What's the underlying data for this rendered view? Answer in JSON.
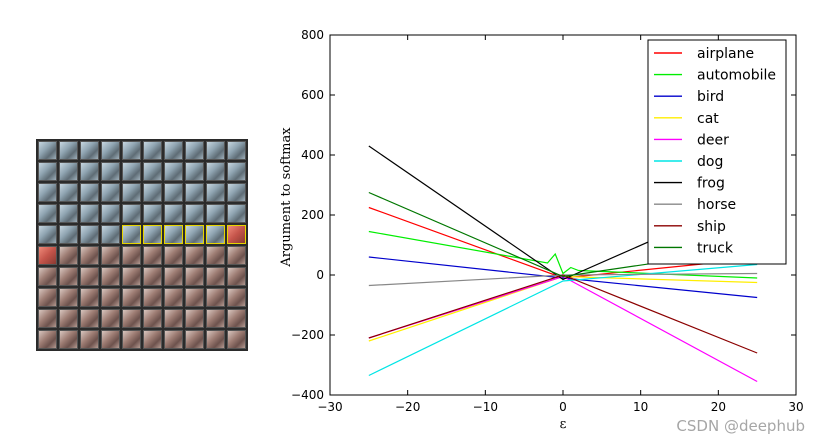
{
  "image_grid": {
    "rows": 10,
    "cols": 10,
    "tint_by_row": [
      "blue",
      "blue",
      "blue",
      "blue",
      "blue",
      "brown",
      "brown",
      "brown",
      "brown",
      "brown"
    ],
    "highlighted_cells": [
      [
        4,
        4
      ],
      [
        4,
        5
      ],
      [
        4,
        6
      ],
      [
        4,
        7
      ],
      [
        4,
        8
      ],
      [
        4,
        9
      ],
      [
        4,
        10
      ]
    ],
    "red_cells": [
      [
        5,
        0
      ],
      [
        4,
        9
      ]
    ]
  },
  "chart_data": {
    "type": "line",
    "xlabel": "ε",
    "ylabel": "Argument to softmax",
    "xlim": [
      -30,
      30
    ],
    "ylim": [
      -400,
      800
    ],
    "xticks": [
      -30,
      -20,
      -10,
      0,
      10,
      20,
      30
    ],
    "yticks": [
      -400,
      -200,
      0,
      200,
      400,
      600,
      800
    ],
    "grid": false,
    "legend_position": "top-right",
    "series": [
      {
        "name": "airplane",
        "color": "#ff0000",
        "x": [
          -25,
          0,
          25
        ],
        "y": [
          225,
          -10,
          55
        ]
      },
      {
        "name": "automobile",
        "color": "#00ee00",
        "x": [
          -25,
          -2,
          -1,
          0,
          1,
          2,
          25
        ],
        "y": [
          145,
          40,
          70,
          5,
          25,
          15,
          -10
        ]
      },
      {
        "name": "bird",
        "color": "#0000cc",
        "x": [
          -25,
          0,
          25
        ],
        "y": [
          60,
          -10,
          -75
        ]
      },
      {
        "name": "cat",
        "color": "#ffee00",
        "x": [
          -25,
          0,
          25
        ],
        "y": [
          -220,
          -5,
          -25
        ]
      },
      {
        "name": "deer",
        "color": "#ff00ff",
        "x": [
          -25,
          0,
          25
        ],
        "y": [
          -210,
          -5,
          -355
        ]
      },
      {
        "name": "dog",
        "color": "#00e5e5",
        "x": [
          -25,
          0,
          25
        ],
        "y": [
          -335,
          -20,
          35
        ]
      },
      {
        "name": "frog",
        "color": "#000000",
        "x": [
          -25,
          0,
          25
        ],
        "y": [
          430,
          -15,
          270
        ]
      },
      {
        "name": "horse",
        "color": "#888888",
        "x": [
          -25,
          0,
          25
        ],
        "y": [
          -35,
          0,
          5
        ]
      },
      {
        "name": "ship",
        "color": "#8b0000",
        "x": [
          -25,
          0,
          25
        ],
        "y": [
          -210,
          0,
          -260
        ]
      },
      {
        "name": "truck",
        "color": "#007700",
        "x": [
          -25,
          0,
          25
        ],
        "y": [
          275,
          -5,
          90
        ]
      }
    ]
  },
  "watermark": "CSDN @deephub"
}
